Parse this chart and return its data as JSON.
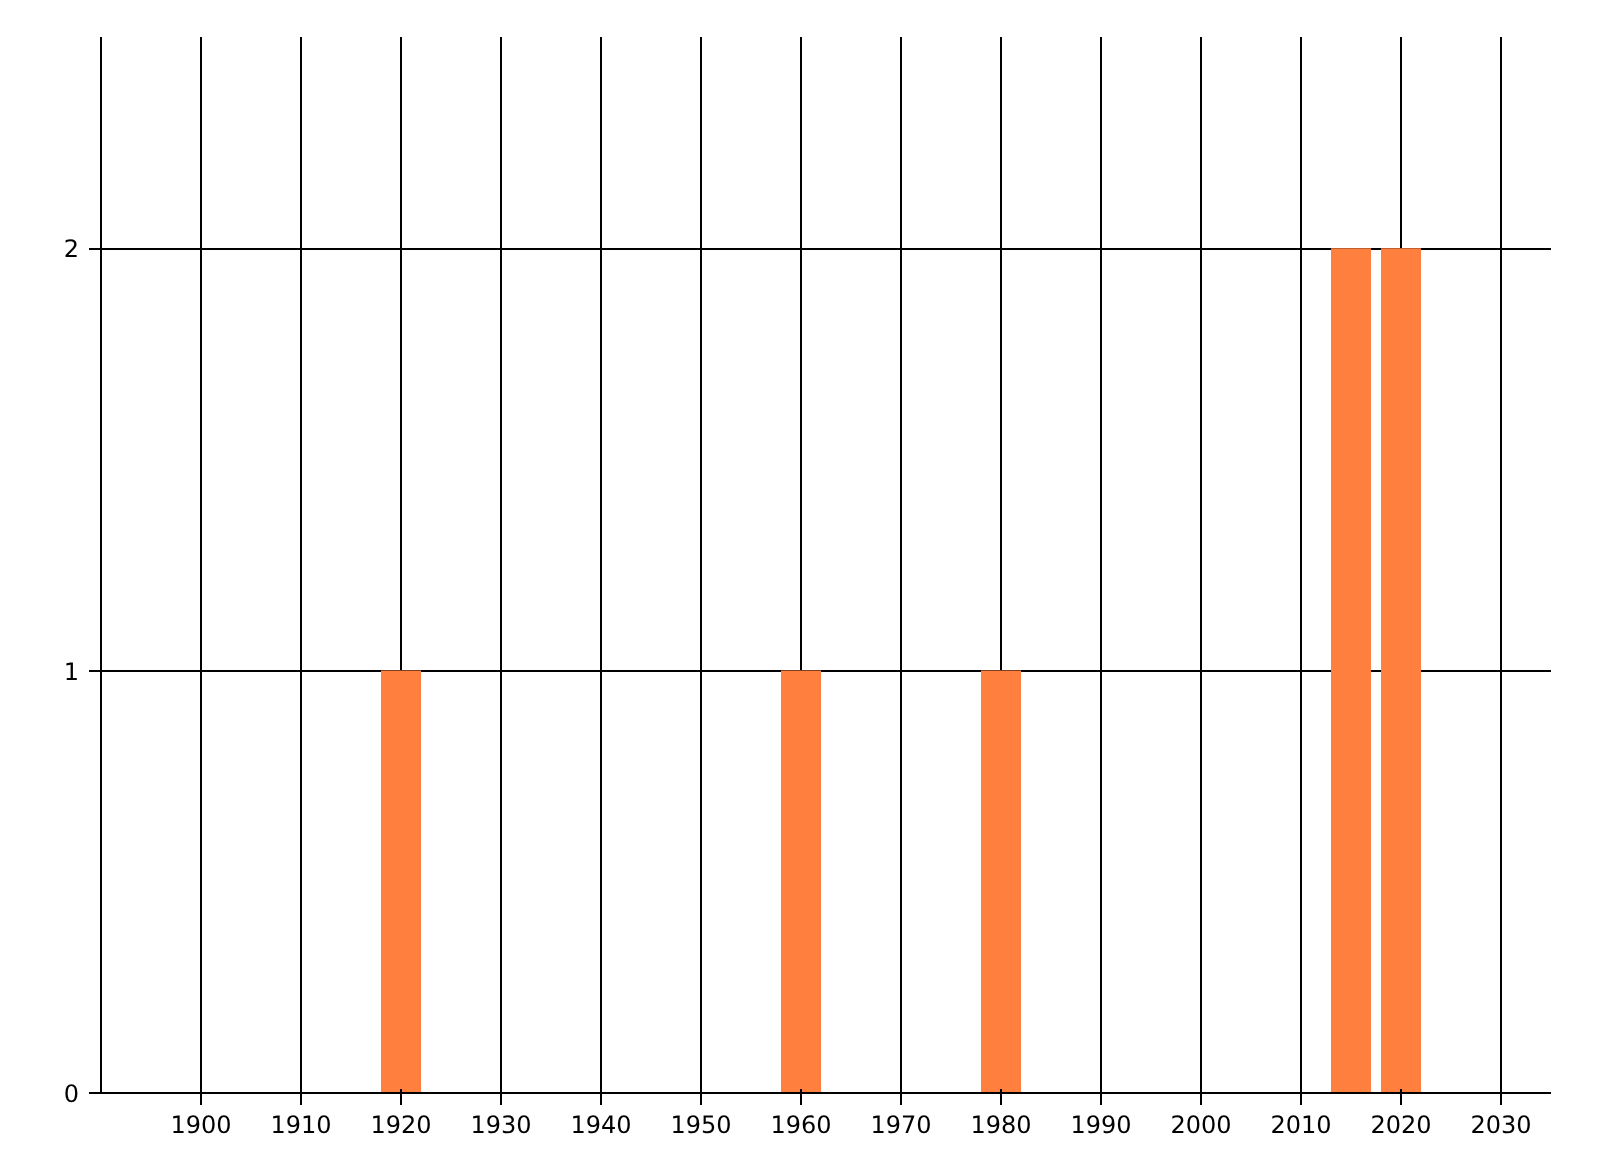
{
  "chart_data": {
    "type": "bar",
    "x": [
      1920,
      1960,
      1980,
      2015,
      2020
    ],
    "values": [
      1,
      1,
      1,
      2,
      2
    ],
    "color": "#ff7f3f",
    "xlim": [
      1890,
      2035
    ],
    "xticks": [
      1900,
      1910,
      1920,
      1930,
      1940,
      1950,
      1960,
      1970,
      1980,
      1990,
      2000,
      2010,
      2020,
      2030
    ],
    "ylim": [
      0,
      2.5
    ],
    "yticks": [
      0,
      1,
      2
    ],
    "grid": true
  }
}
